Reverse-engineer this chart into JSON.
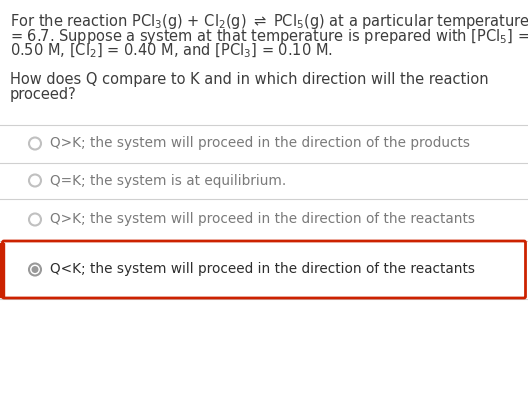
{
  "background_color": "#ffffff",
  "text_color": "#3d3d3d",
  "option_text_color": "#7a7a7a",
  "selected_text_color": "#2d2d2d",
  "separator_color": "#d0d0d0",
  "highlight_border_color": "#cc2200",
  "highlight_bg_color": "#ffffff",
  "radio_color_unselected": "#c0c0c0",
  "radio_color_selected": "#999999",
  "left_bar_color": "#cc2200",
  "font_size_question": 10.5,
  "font_size_option": 9.8,
  "options": [
    {
      "label": "Q>K; the system will proceed in the direction of the products",
      "selected": false,
      "highlighted": false
    },
    {
      "label": "Q=K; the system is at equilibrium.",
      "selected": false,
      "highlighted": false
    },
    {
      "label": "Q>K; the system will proceed in the direction of the reactants",
      "selected": false,
      "highlighted": false
    },
    {
      "label": "Q<K; the system will proceed in the direction of the reactants",
      "selected": true,
      "highlighted": true
    }
  ]
}
